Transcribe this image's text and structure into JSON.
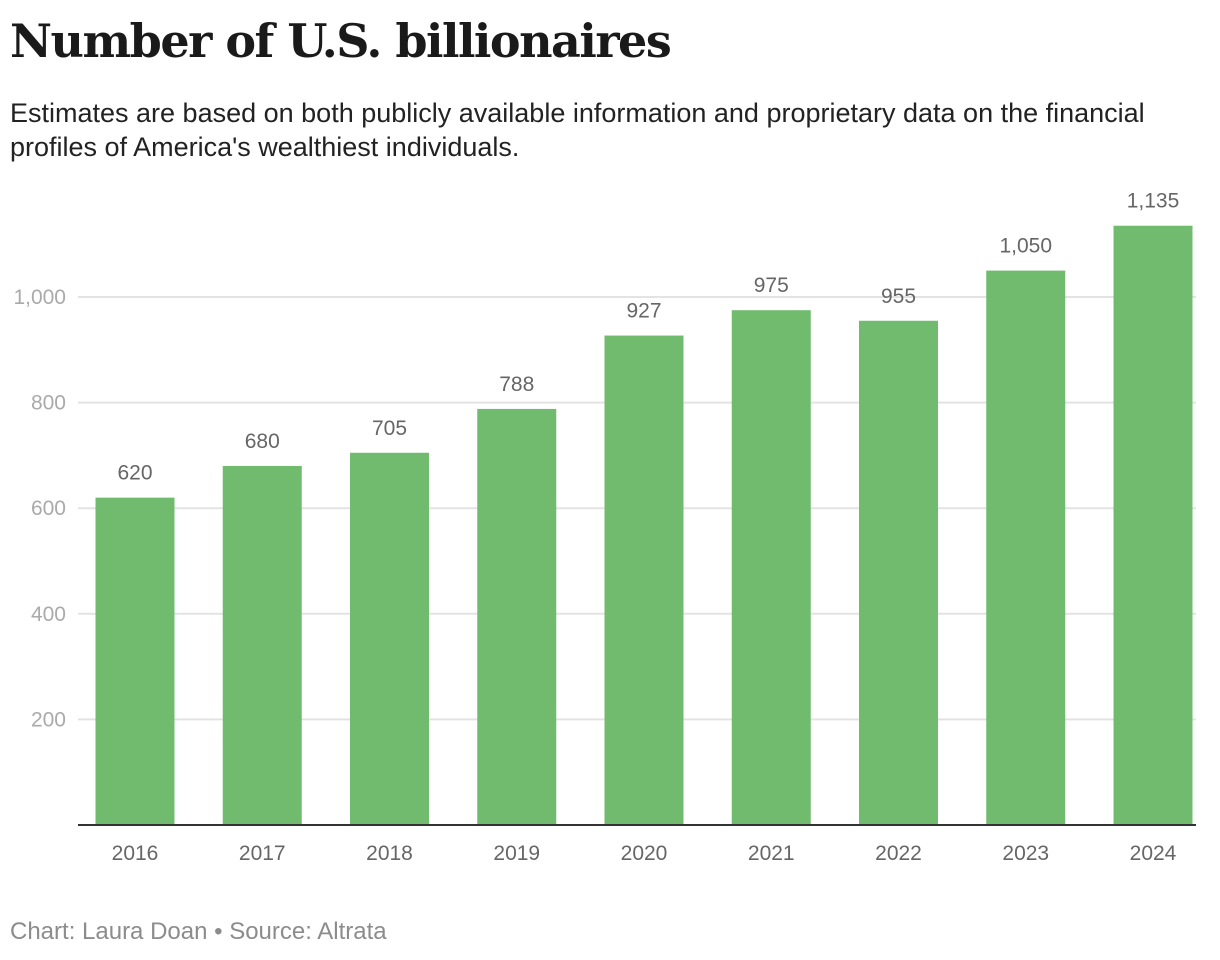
{
  "chart_data": {
    "type": "bar",
    "title": "Number of U.S. billionaires",
    "subtitle": "Estimates are based on both publicly available information and proprietary data on the financial profiles of America's wealthiest individuals.",
    "categories": [
      "2016",
      "2017",
      "2018",
      "2019",
      "2020",
      "2021",
      "2022",
      "2023",
      "2024"
    ],
    "values": [
      620,
      680,
      705,
      788,
      927,
      975,
      955,
      1050,
      1135
    ],
    "data_labels": [
      "620",
      "680",
      "705",
      "788",
      "927",
      "975",
      "955",
      "1,050",
      "1,135"
    ],
    "yticks": [
      200,
      400,
      600,
      800,
      1000
    ],
    "ytick_labels": [
      "200",
      "400",
      "600",
      "800",
      "1,000"
    ],
    "ylim": [
      0,
      1135
    ],
    "xlabel": "",
    "ylabel": "",
    "grid": true,
    "bar_color": "#71bb6f",
    "footer": "Chart: Laura Doan • Source: Altrata"
  }
}
